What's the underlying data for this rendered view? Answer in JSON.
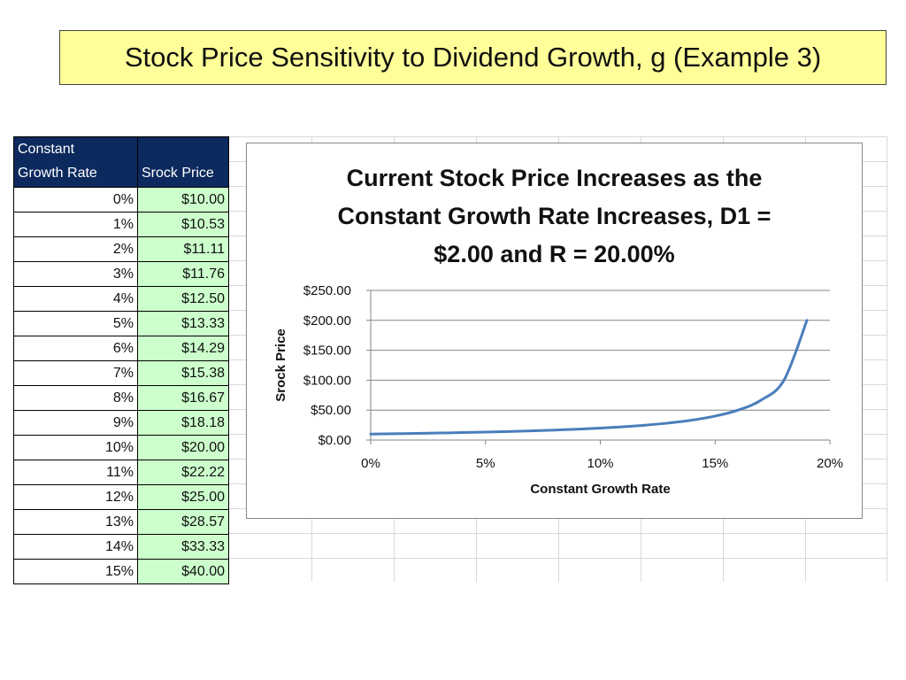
{
  "slide": {
    "title": "Stock Price Sensitivity to Dividend Growth, g (Example 3)"
  },
  "table": {
    "headers": [
      "Constant Growth Rate",
      "Srock Price"
    ],
    "header_lines": [
      [
        "Constant",
        "Growth Rate"
      ],
      [
        "Srock Price"
      ]
    ],
    "rows": [
      [
        "0%",
        "$10.00"
      ],
      [
        "1%",
        "$10.53"
      ],
      [
        "2%",
        "$11.11"
      ],
      [
        "3%",
        "$11.76"
      ],
      [
        "4%",
        "$12.50"
      ],
      [
        "5%",
        "$13.33"
      ],
      [
        "6%",
        "$14.29"
      ],
      [
        "7%",
        "$15.38"
      ],
      [
        "8%",
        "$16.67"
      ],
      [
        "9%",
        "$18.18"
      ],
      [
        "10%",
        "$20.00"
      ],
      [
        "11%",
        "$22.22"
      ],
      [
        "12%",
        "$25.00"
      ],
      [
        "13%",
        "$28.57"
      ],
      [
        "14%",
        "$33.33"
      ],
      [
        "15%",
        "$40.00"
      ]
    ]
  },
  "chart_data": {
    "type": "line",
    "title": "Current Stock Price Increases as the Constant Growth Rate Increases, D1 = $2.00 and R = 20.00%",
    "title_lines": [
      "Current Stock Price Increases as the",
      "Constant Growth Rate Increases, D1 =",
      "$2.00 and R = 20.00%"
    ],
    "xlabel": "Constant Growth Rate",
    "ylabel": "Srock Price",
    "xlim": [
      0,
      0.2
    ],
    "ylim": [
      0,
      250
    ],
    "x_ticks": [
      0,
      0.05,
      0.1,
      0.15,
      0.2
    ],
    "x_tick_labels": [
      "0%",
      "5%",
      "10%",
      "15%",
      "20%"
    ],
    "y_ticks": [
      0,
      50,
      100,
      150,
      200,
      250
    ],
    "y_tick_labels": [
      "$0.00",
      "$50.00",
      "$100.00",
      "$150.00",
      "$200.00",
      "$250.00"
    ],
    "grid": "horizontal",
    "line_color": "#4a7ebb",
    "series": [
      {
        "x": [
          0,
          0.01,
          0.02,
          0.03,
          0.04,
          0.05,
          0.06,
          0.07,
          0.08,
          0.09,
          0.1,
          0.11,
          0.12,
          0.13,
          0.14,
          0.15,
          0.16,
          0.17,
          0.18,
          0.19
        ],
        "values": [
          10.0,
          10.53,
          11.11,
          11.76,
          12.5,
          13.33,
          14.29,
          15.38,
          16.67,
          18.18,
          20.0,
          22.22,
          25.0,
          28.57,
          33.33,
          40.0,
          50.0,
          66.67,
          100.0,
          200.0
        ]
      }
    ]
  }
}
